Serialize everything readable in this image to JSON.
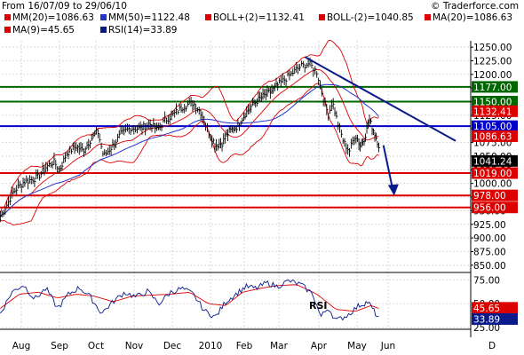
{
  "header": {
    "range_text": "From 16/07/09 to 29/06/10",
    "brand": "© Traderforce.com",
    "legend": [
      {
        "label": "MM(20)=1086.63",
        "color": "#dd0000"
      },
      {
        "label": "MM(50)=1122.48",
        "color": "#2233cc"
      },
      {
        "label": "BOLL+(2)=1132.41",
        "color": "#dd0000"
      },
      {
        "label": "BOLL-(2)=1040.85",
        "color": "#dd0000"
      },
      {
        "label": "MA(20)=1086.63",
        "color": "#dd0000"
      },
      {
        "label": "MA(9)=45.65",
        "color": "#dd0000"
      },
      {
        "label": "RSI(14)=33.89",
        "color": "#0a1a8a"
      }
    ]
  },
  "chart_data": {
    "type": "line",
    "price": {
      "y_ticks": [
        850,
        875,
        900,
        925,
        950,
        975,
        1000,
        1025,
        1050,
        1075,
        1100,
        1125,
        1150,
        1175,
        1200,
        1225,
        1250
      ],
      "ylim": [
        840,
        1255
      ],
      "x_labels": [
        "Aug",
        "Sep",
        "Oct",
        "Nov",
        "Dec",
        "2010",
        "Feb",
        "Mar",
        "Apr",
        "May",
        "Jun",
        "D"
      ],
      "close_series": [
        {
          "t": 0.0,
          "v": 940
        },
        {
          "t": 0.15,
          "v": 958
        },
        {
          "t": 0.35,
          "v": 985
        },
        {
          "t": 0.6,
          "v": 1002
        },
        {
          "t": 0.85,
          "v": 1008
        },
        {
          "t": 1.0,
          "v": 1012
        },
        {
          "t": 1.2,
          "v": 1030
        },
        {
          "t": 1.4,
          "v": 1040
        },
        {
          "t": 1.55,
          "v": 1025
        },
        {
          "t": 1.75,
          "v": 1055
        },
        {
          "t": 2.0,
          "v": 1068
        },
        {
          "t": 2.2,
          "v": 1060
        },
        {
          "t": 2.4,
          "v": 1080
        },
        {
          "t": 2.6,
          "v": 1095
        },
        {
          "t": 2.75,
          "v": 1050
        },
        {
          "t": 3.0,
          "v": 1070
        },
        {
          "t": 3.2,
          "v": 1090
        },
        {
          "t": 3.45,
          "v": 1102
        },
        {
          "t": 3.7,
          "v": 1100
        },
        {
          "t": 3.95,
          "v": 1110
        },
        {
          "t": 4.15,
          "v": 1098
        },
        {
          "t": 4.35,
          "v": 1115
        },
        {
          "t": 4.6,
          "v": 1128
        },
        {
          "t": 4.85,
          "v": 1142
        },
        {
          "t": 5.1,
          "v": 1148
        },
        {
          "t": 5.3,
          "v": 1130
        },
        {
          "t": 5.5,
          "v": 1095
        },
        {
          "t": 5.7,
          "v": 1070
        },
        {
          "t": 5.9,
          "v": 1075
        },
        {
          "t": 6.1,
          "v": 1095
        },
        {
          "t": 6.35,
          "v": 1105
        },
        {
          "t": 6.6,
          "v": 1130
        },
        {
          "t": 6.85,
          "v": 1148
        },
        {
          "t": 7.1,
          "v": 1160
        },
        {
          "t": 7.35,
          "v": 1170
        },
        {
          "t": 7.6,
          "v": 1185
        },
        {
          "t": 7.85,
          "v": 1200
        },
        {
          "t": 8.1,
          "v": 1215
        },
        {
          "t": 8.3,
          "v": 1220
        },
        {
          "t": 8.5,
          "v": 1205
        },
        {
          "t": 8.65,
          "v": 1160
        },
        {
          "t": 8.8,
          "v": 1125
        },
        {
          "t": 8.9,
          "v": 1150
        },
        {
          "t": 9.05,
          "v": 1110
        },
        {
          "t": 9.2,
          "v": 1075
        },
        {
          "t": 9.35,
          "v": 1060
        },
        {
          "t": 9.5,
          "v": 1090
        },
        {
          "t": 9.65,
          "v": 1070
        },
        {
          "t": 9.8,
          "v": 1085
        },
        {
          "t": 9.95,
          "v": 1115
        },
        {
          "t": 10.1,
          "v": 1095
        },
        {
          "t": 10.25,
          "v": 1070
        }
      ],
      "horizontal_levels": [
        {
          "value": 1177,
          "label": "1177.00",
          "color": "#006600"
        },
        {
          "value": 1150,
          "label": "1150.00",
          "color": "#006600"
        },
        {
          "value": 1105,
          "label": "1105.00",
          "color": "#0000cc"
        },
        {
          "value": 1019,
          "label": "1019.00",
          "color": "#dd0000"
        },
        {
          "value": 978,
          "label": "978.00",
          "color": "#dd0000"
        },
        {
          "value": 956,
          "label": "956.00",
          "color": "#dd0000"
        }
      ],
      "value_tags": [
        {
          "value": 1132.41,
          "label": "1132.41",
          "color": "#dd0000"
        },
        {
          "value": 1086.63,
          "label": "1086.63",
          "color": "#dd0000"
        },
        {
          "value": 1041.24,
          "label": "1041.24",
          "color": "#000000"
        }
      ],
      "trendlines": [
        {
          "from": {
            "t": 8.2,
            "v": 1232
          },
          "to": {
            "t": 11.2,
            "v": 1078
          },
          "color": "#0a1a8a"
        }
      ],
      "arrow": {
        "from": {
          "t": 10.4,
          "v": 1070
        },
        "to": {
          "t": 10.6,
          "v": 984
        },
        "color": "#0a1a8a"
      }
    },
    "rsi": {
      "label": "RSI",
      "y_ticks": [
        25,
        50,
        75
      ],
      "ylim": [
        25,
        80
      ],
      "tags": [
        {
          "value": 45.65,
          "label": "45.65",
          "color": "#dd0000"
        },
        {
          "value": 33.89,
          "label": "33.89",
          "color": "#0a1a8a"
        }
      ],
      "rsi_series": [
        {
          "t": 0.0,
          "v": 40
        },
        {
          "t": 0.3,
          "v": 62
        },
        {
          "t": 0.6,
          "v": 70
        },
        {
          "t": 0.9,
          "v": 55
        },
        {
          "t": 1.2,
          "v": 66
        },
        {
          "t": 1.5,
          "v": 45
        },
        {
          "t": 1.8,
          "v": 60
        },
        {
          "t": 2.1,
          "v": 67
        },
        {
          "t": 2.4,
          "v": 57
        },
        {
          "t": 2.7,
          "v": 40
        },
        {
          "t": 3.0,
          "v": 52
        },
        {
          "t": 3.3,
          "v": 62
        },
        {
          "t": 3.6,
          "v": 57
        },
        {
          "t": 3.9,
          "v": 63
        },
        {
          "t": 4.2,
          "v": 50
        },
        {
          "t": 4.5,
          "v": 62
        },
        {
          "t": 4.8,
          "v": 66
        },
        {
          "t": 5.1,
          "v": 60
        },
        {
          "t": 5.4,
          "v": 42
        },
        {
          "t": 5.7,
          "v": 36
        },
        {
          "t": 6.0,
          "v": 52
        },
        {
          "t": 6.3,
          "v": 60
        },
        {
          "t": 6.6,
          "v": 68
        },
        {
          "t": 6.9,
          "v": 66
        },
        {
          "t": 7.2,
          "v": 72
        },
        {
          "t": 7.5,
          "v": 68
        },
        {
          "t": 7.8,
          "v": 74
        },
        {
          "t": 8.1,
          "v": 70
        },
        {
          "t": 8.4,
          "v": 60
        },
        {
          "t": 8.6,
          "v": 36
        },
        {
          "t": 8.8,
          "v": 46
        },
        {
          "t": 9.0,
          "v": 32
        },
        {
          "t": 9.3,
          "v": 38
        },
        {
          "t": 9.6,
          "v": 48
        },
        {
          "t": 9.9,
          "v": 52
        },
        {
          "t": 10.1,
          "v": 42
        },
        {
          "t": 10.25,
          "v": 34
        }
      ],
      "ma_series": [
        {
          "t": 0.0,
          "v": 45
        },
        {
          "t": 0.5,
          "v": 60
        },
        {
          "t": 1.0,
          "v": 62
        },
        {
          "t": 1.5,
          "v": 56
        },
        {
          "t": 2.0,
          "v": 60
        },
        {
          "t": 2.5,
          "v": 58
        },
        {
          "t": 3.0,
          "v": 52
        },
        {
          "t": 3.5,
          "v": 58
        },
        {
          "t": 4.0,
          "v": 59
        },
        {
          "t": 4.5,
          "v": 60
        },
        {
          "t": 5.0,
          "v": 62
        },
        {
          "t": 5.5,
          "v": 50
        },
        {
          "t": 6.0,
          "v": 48
        },
        {
          "t": 6.5,
          "v": 62
        },
        {
          "t": 7.0,
          "v": 66
        },
        {
          "t": 7.5,
          "v": 69
        },
        {
          "t": 8.0,
          "v": 70
        },
        {
          "t": 8.5,
          "v": 60
        },
        {
          "t": 9.0,
          "v": 44
        },
        {
          "t": 9.5,
          "v": 42
        },
        {
          "t": 10.0,
          "v": 48
        },
        {
          "t": 10.25,
          "v": 45
        }
      ]
    }
  }
}
